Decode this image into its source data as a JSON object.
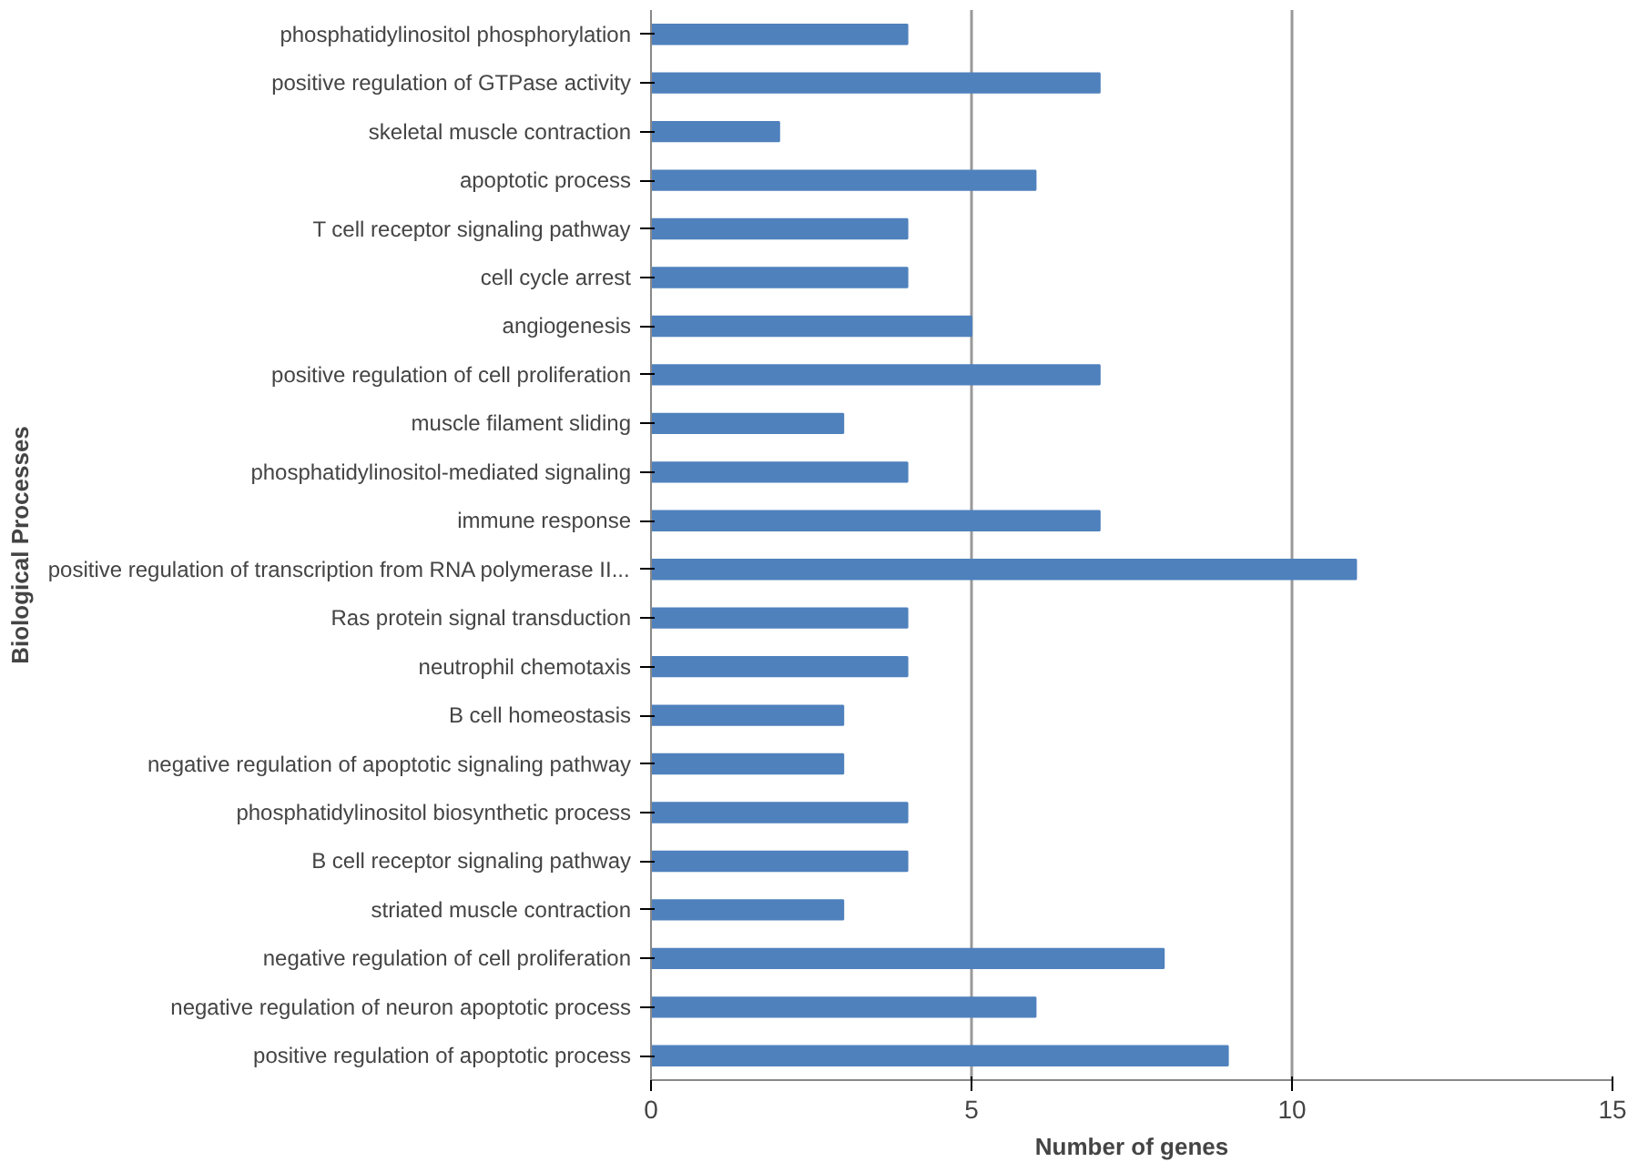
{
  "chart_data": {
    "type": "bar",
    "orientation": "horizontal",
    "xlabel": "Number of genes",
    "ylabel": "Biological Processes",
    "categories": [
      "phosphatidylinositol phosphorylation",
      "positive regulation of GTPase activity",
      "skeletal muscle contraction",
      "apoptotic process",
      "T cell receptor signaling pathway",
      "cell cycle arrest",
      "angiogenesis",
      "positive regulation of cell proliferation",
      "muscle filament sliding",
      "phosphatidylinositol-mediated signaling",
      "immune response",
      "positive regulation of transcription from RNA polymerase II...",
      "Ras protein signal transduction",
      "neutrophil chemotaxis",
      "B cell homeostasis",
      "negative regulation of apoptotic signaling pathway",
      "phosphatidylinositol biosynthetic process",
      "B cell receptor signaling pathway",
      "striated muscle contraction",
      "negative regulation of cell proliferation",
      "negative regulation of neuron apoptotic process",
      "positive regulation of apoptotic process"
    ],
    "values": [
      4,
      7,
      2,
      6,
      4,
      4,
      5,
      7,
      3,
      4,
      7,
      11,
      4,
      4,
      3,
      3,
      4,
      4,
      3,
      8,
      6,
      9
    ],
    "color": "#4f81bd",
    "xlim": [
      0,
      15
    ],
    "xticks": [
      0,
      5,
      10,
      15
    ],
    "grid": "x"
  }
}
